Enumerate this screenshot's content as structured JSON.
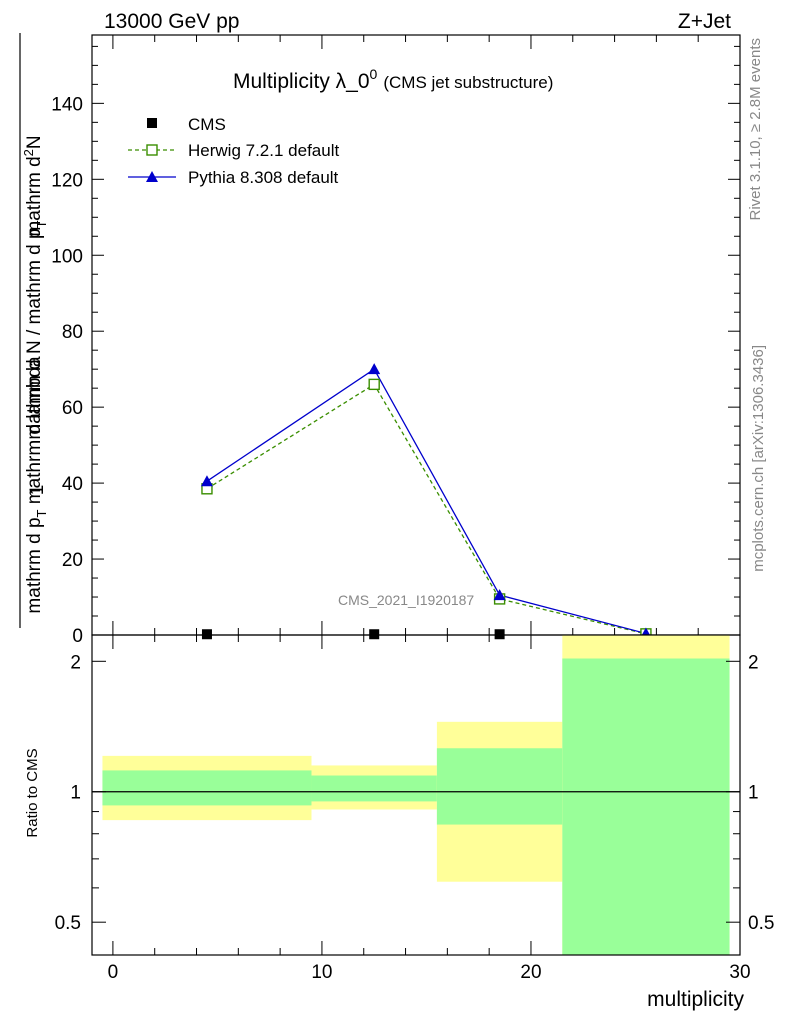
{
  "header": {
    "left": "13000 GeV pp",
    "right": "Z+Jet"
  },
  "side_labels": {
    "events": "Rivet 3.1.10, ≥ 2.8M events",
    "source": "mcplots.cern.ch [arXiv:1306.3436]"
  },
  "watermark": "CMS_2021_I1920187",
  "chart_data": [
    {
      "type": "line",
      "title_main": "Multiplicity λ_0",
      "title_sup": "0",
      "title_sub": "(CMS jet substructure)",
      "ylabel_top": "mathrm d",
      "ylabel_top_sup": "2",
      "ylabel_top_end": "N",
      "ylabel_bottom": "mathrm d p",
      "ylabel_bottom_sub": "T",
      "ylabel_bottom_end": " mathrm d lambda",
      "ylabel_prefix": "1",
      "ylabel_frac_bottom": "mathrm d N / mathrm d p",
      "ylabel_frac_bottom_sub": "T",
      "xlim": [
        -1,
        30
      ],
      "ylim": [
        0,
        158
      ],
      "yticks": [
        0,
        20,
        40,
        60,
        80,
        100,
        120,
        140
      ],
      "legend_position": "top-left",
      "series": [
        {
          "name": "CMS",
          "marker": "square",
          "color": "#000000",
          "x": [
            4.5,
            12.5,
            18.5,
            25.5
          ],
          "y": [
            0.2,
            0.2,
            0.2,
            0.1
          ]
        },
        {
          "name": "Herwig 7.2.1 default",
          "marker": "open-square",
          "color": "#3a8e00",
          "dashed": true,
          "x": [
            4.5,
            12.5,
            18.5,
            25.5
          ],
          "y": [
            38.5,
            66.0,
            9.5,
            0.3
          ]
        },
        {
          "name": "Pythia 8.308 default",
          "marker": "triangle",
          "color": "#0000cc",
          "dashed": false,
          "x": [
            4.5,
            12.5,
            18.5,
            25.5
          ],
          "y": [
            40.5,
            70.0,
            10.5,
            0.4
          ]
        }
      ]
    },
    {
      "type": "area",
      "ylabel": "Ratio to CMS",
      "xlabel": "multiplicity",
      "xlim": [
        -1,
        30
      ],
      "ylim": [
        0.42,
        2.3
      ],
      "yscale": "log",
      "yticks": [
        {
          "value": 0.5,
          "label": "0.5"
        },
        {
          "value": 1,
          "label": "1"
        },
        {
          "value": 2,
          "label": "2"
        }
      ],
      "xticks": [
        0,
        10,
        20,
        30
      ],
      "reference": 1,
      "bands": [
        {
          "x0": -0.5,
          "x1": 9.5,
          "outer": [
            0.86,
            1.21
          ],
          "inner": [
            0.93,
            1.12
          ]
        },
        {
          "x0": 9.5,
          "x1": 15.5,
          "outer": [
            0.91,
            1.15
          ],
          "inner": [
            0.95,
            1.09
          ]
        },
        {
          "x0": 15.5,
          "x1": 21.5,
          "outer": [
            0.62,
            1.45
          ],
          "inner": [
            0.84,
            1.26
          ]
        },
        {
          "x0": 21.5,
          "x1": 29.5,
          "outer": [
            0.42,
            2.3
          ],
          "inner": [
            0.42,
            2.03
          ]
        }
      ]
    }
  ]
}
